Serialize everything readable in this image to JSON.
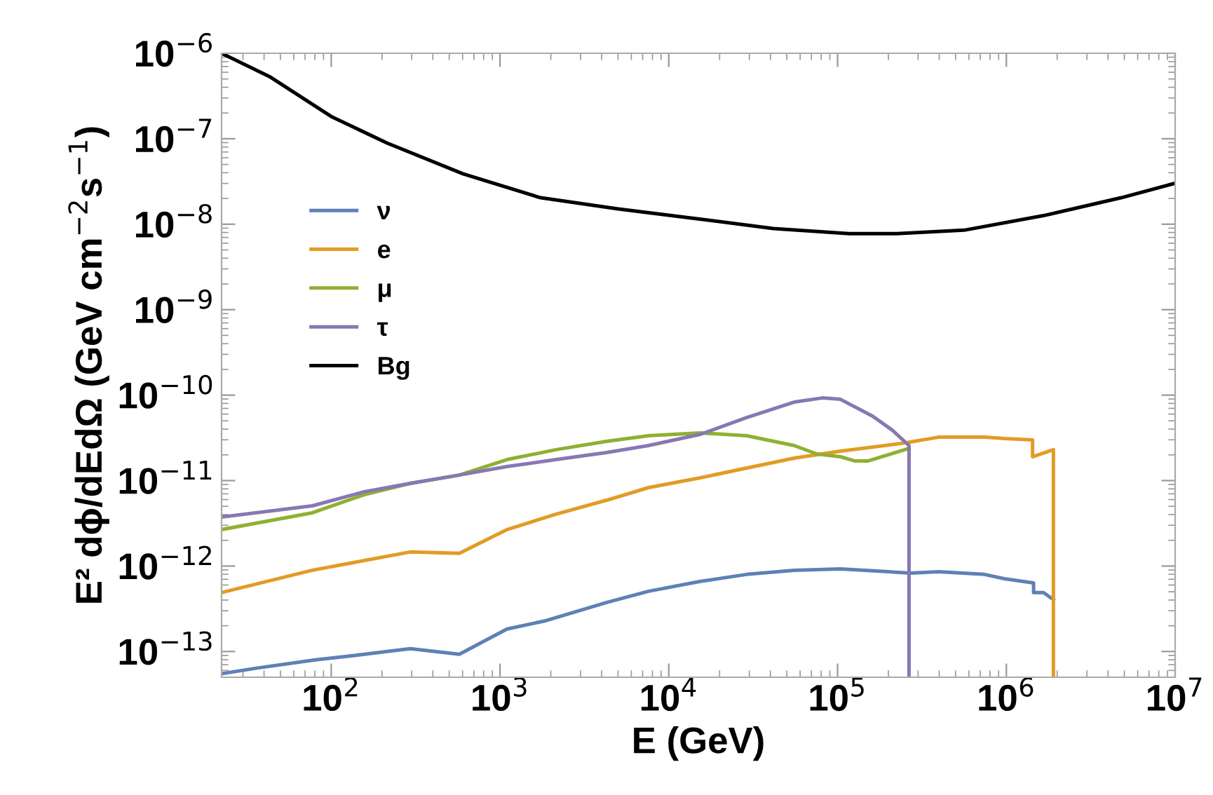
{
  "chart_data": {
    "type": "line",
    "xlabel": "E (GeV)",
    "ylabel": "E² dϕ/dEdΩ (GeV cm$^{−2}$s$^{−1}$)",
    "log": "xy",
    "grid": false,
    "legend": "left",
    "line_style": "solid",
    "marker": "none",
    "xlim": [
      22.4,
      10000000
    ],
    "ylim": [
      5e-14,
      1e-06
    ],
    "xticks": [
      {
        "value": 100,
        "label": "10$^{2}$"
      },
      {
        "value": 1000,
        "label": "10$^{3}$"
      },
      {
        "value": 10000,
        "label": "10$^{4}$"
      },
      {
        "value": 100000,
        "label": "10$^{5}$"
      },
      {
        "value": 1000000,
        "label": "10$^{6}$"
      },
      {
        "value": 10000000,
        "label": "10$^{7}$"
      }
    ],
    "yticks": [
      {
        "value": 1e-13,
        "label": "10$^{−13}$"
      },
      {
        "value": 1e-12,
        "label": "10$^{−12}$"
      },
      {
        "value": 1e-11,
        "label": "10$^{−11}$"
      },
      {
        "value": 1e-10,
        "label": "10$^{−10}$"
      },
      {
        "value": 1e-09,
        "label": "10$^{−9}$"
      },
      {
        "value": 1e-08,
        "label": "10$^{−8}$"
      },
      {
        "value": 1e-07,
        "label": "10$^{−7}$"
      },
      {
        "value": 1e-06,
        "label": "10$^{−6}$"
      }
    ],
    "series": [
      {
        "name": "ν",
        "color": "#5e81b5",
        "x": [
          22.4,
          35.3,
          80.4,
          157,
          294,
          574,
          1100,
          1880,
          4280,
          7590,
          15400,
          28900,
          55300,
          104000,
          270000,
          396000,
          743000,
          973000,
          1450000,
          1450000,
          1660000,
          1900000
        ],
        "values": [
          5.5e-14,
          6.35e-14,
          7.98e-14,
          9.27e-14,
          1.08e-13,
          9.27e-14,
          1.83e-13,
          2.3e-13,
          3.75e-13,
          5.07e-13,
          6.61e-13,
          7.98e-13,
          8.93e-13,
          9.27e-13,
          8.28e-13,
          8.59e-13,
          7.98e-13,
          7.11e-13,
          6.35e-13,
          4.89e-13,
          4.89e-13,
          4.05e-13
        ]
      },
      {
        "name": "e",
        "color": "#e19c24",
        "x": [
          22.4,
          77.3,
          157,
          294,
          574,
          1100,
          2150,
          4280,
          7590,
          15400,
          55300,
          104000,
          255000,
          396000,
          743000,
          973000,
          1430000,
          1430000,
          1900000,
          1900000
        ],
        "values": [
          4.89e-13,
          8.93e-13,
          1.16e-12,
          1.46e-12,
          1.41e-12,
          2.67e-12,
          4.05e-12,
          5.89e-12,
          8.28e-12,
          1.08e-11,
          1.83e-11,
          2.21e-11,
          2.77e-11,
          3.22e-11,
          3.22e-11,
          3.1e-11,
          2.99e-11,
          1.9e-11,
          2.3e-11,
          5e-14
        ]
      },
      {
        "name": "μ",
        "color": "#8fb032",
        "x": [
          22.4,
          77.3,
          157,
          294,
          574,
          1100,
          2150,
          4280,
          7590,
          15400,
          28900,
          55300,
          75200,
          104000,
          126000,
          152000,
          265000
        ],
        "values": [
          2.67e-12,
          4.2e-12,
          6.85e-12,
          9.27e-12,
          1.16e-11,
          1.76e-11,
          2.3e-11,
          2.88e-11,
          3.35e-11,
          3.61e-11,
          3.35e-11,
          2.57e-11,
          2.05e-11,
          1.9e-11,
          1.7e-11,
          1.7e-11,
          2.38e-11
        ]
      },
      {
        "name": "τ",
        "color": "#8778b3",
        "x": [
          22.4,
          77.3,
          157,
          294,
          574,
          1100,
          2150,
          4280,
          7590,
          15400,
          28900,
          55300,
          81100,
          104000,
          161000,
          211000,
          265000,
          265000
        ],
        "values": [
          3.75e-12,
          5.07e-12,
          7.4e-12,
          9.27e-12,
          1.16e-11,
          1.46e-11,
          1.76e-11,
          2.13e-11,
          2.57e-11,
          3.48e-11,
          5.47e-11,
          8.28e-11,
          9.27e-11,
          8.93e-11,
          5.68e-11,
          3.89e-11,
          2.57e-11,
          5e-14
        ]
      },
      {
        "name": "Bg",
        "color": "#000000",
        "x": [
          22.4,
          43.7,
          100,
          214,
          603,
          1740,
          5010,
          14100,
          41700,
          117000,
          224000,
          562000,
          1660000,
          4790000,
          10000000
        ],
        "values": [
          1e-06,
          5.25e-07,
          1.82e-07,
          8.91e-08,
          3.89e-08,
          2.04e-08,
          1.51e-08,
          1.17e-08,
          8.91e-09,
          7.76e-09,
          7.76e-09,
          8.51e-09,
          1.26e-08,
          2.04e-08,
          3.02e-08
        ]
      }
    ]
  }
}
